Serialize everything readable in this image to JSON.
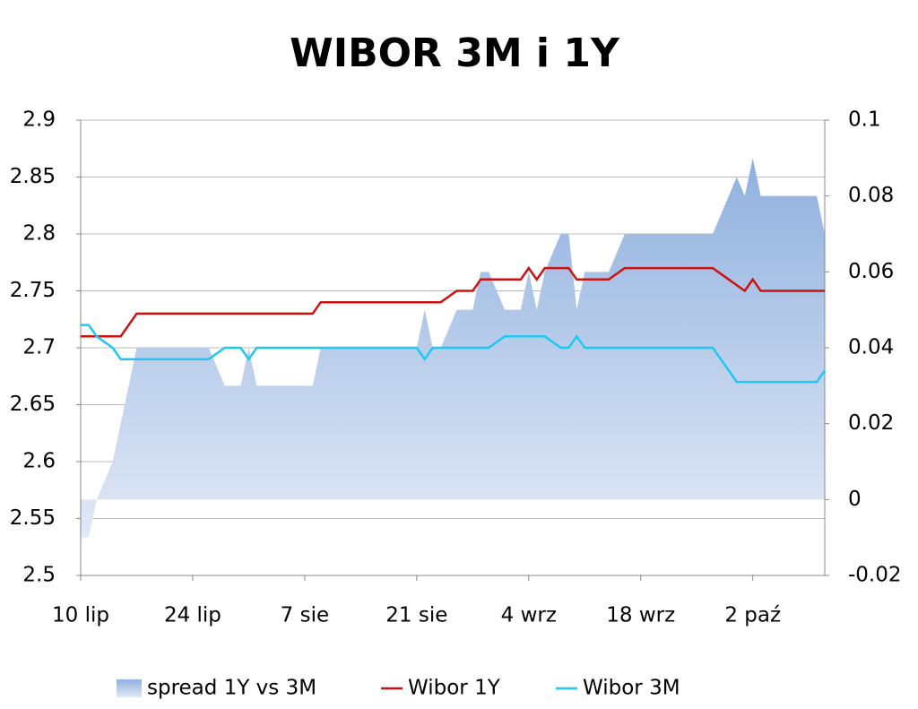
{
  "chart_data": {
    "type": "line",
    "title": "WIBOR 3M i 1Y",
    "categories": [
      "10 lip",
      null,
      null,
      null,
      null,
      null,
      null,
      null,
      null,
      null,
      null,
      null,
      null,
      null,
      "24 lip",
      null,
      null,
      null,
      null,
      null,
      null,
      null,
      null,
      null,
      null,
      null,
      null,
      null,
      "7 sie",
      null,
      null,
      null,
      null,
      null,
      null,
      null,
      null,
      null,
      null,
      null,
      null,
      null,
      "21 sie",
      null,
      null,
      null,
      null,
      null,
      null,
      null,
      null,
      null,
      null,
      null,
      null,
      null,
      "4 wrz",
      null,
      null,
      null,
      null,
      null,
      null,
      null,
      null,
      null,
      null,
      null,
      null,
      null,
      "18 wrz",
      null,
      null,
      null,
      null,
      null,
      null,
      null,
      null,
      null,
      null,
      null,
      null,
      null,
      "2 paź",
      null,
      null,
      null,
      null,
      null,
      null,
      null,
      null,
      null
    ],
    "series": [
      {
        "name": "spread 1Y vs 3M",
        "type": "area",
        "axis": "y2",
        "color": "#8fb0de",
        "values": [
          -0.01,
          -0.01,
          0,
          0.005,
          0.01,
          0.02,
          0.03,
          0.04,
          0.04,
          0.04,
          0.04,
          0.04,
          0.04,
          0.04,
          0.04,
          0.04,
          0.04,
          0.035,
          0.03,
          0.03,
          0.03,
          0.04,
          0.03,
          0.03,
          0.03,
          0.03,
          0.03,
          0.03,
          0.03,
          0.03,
          0.04,
          0.04,
          0.04,
          0.04,
          0.04,
          0.04,
          0.04,
          0.04,
          0.04,
          0.04,
          0.04,
          0.04,
          0.04,
          0.05,
          0.04,
          0.04,
          0.045,
          0.05,
          0.05,
          0.05,
          0.06,
          0.06,
          0.055,
          0.05,
          0.05,
          0.05,
          0.06,
          0.05,
          0.06,
          0.065,
          0.07,
          0.07,
          0.05,
          0.06,
          0.06,
          0.06,
          0.06,
          0.065,
          0.07,
          0.07,
          0.07,
          0.07,
          0.07,
          0.07,
          0.07,
          0.07,
          0.07,
          0.07,
          0.07,
          0.07,
          0.075,
          0.08,
          0.085,
          0.08,
          0.09,
          0.08,
          0.08,
          0.08,
          0.08,
          0.08,
          0.08,
          0.08,
          0.08,
          0.07
        ]
      },
      {
        "name": "Wibor 1Y",
        "type": "line",
        "color": "#cc1111",
        "values": [
          2.71,
          2.71,
          2.71,
          2.71,
          2.71,
          2.71,
          2.72,
          2.73,
          2.73,
          2.73,
          2.73,
          2.73,
          2.73,
          2.73,
          2.73,
          2.73,
          2.73,
          2.73,
          2.73,
          2.73,
          2.73,
          2.73,
          2.73,
          2.73,
          2.73,
          2.73,
          2.73,
          2.73,
          2.73,
          2.73,
          2.74,
          2.74,
          2.74,
          2.74,
          2.74,
          2.74,
          2.74,
          2.74,
          2.74,
          2.74,
          2.74,
          2.74,
          2.74,
          2.74,
          2.74,
          2.74,
          2.745,
          2.75,
          2.75,
          2.75,
          2.76,
          2.76,
          2.76,
          2.76,
          2.76,
          2.76,
          2.77,
          2.76,
          2.77,
          2.77,
          2.77,
          2.77,
          2.76,
          2.76,
          2.76,
          2.76,
          2.76,
          2.765,
          2.77,
          2.77,
          2.77,
          2.77,
          2.77,
          2.77,
          2.77,
          2.77,
          2.77,
          2.77,
          2.77,
          2.77,
          2.765,
          2.76,
          2.755,
          2.75,
          2.76,
          2.75,
          2.75,
          2.75,
          2.75,
          2.75,
          2.75,
          2.75,
          2.75,
          2.75
        ]
      },
      {
        "name": "Wibor 3M",
        "type": "line",
        "color": "#1ec8f0",
        "values": [
          2.72,
          2.72,
          2.71,
          2.705,
          2.7,
          2.69,
          2.69,
          2.69,
          2.69,
          2.69,
          2.69,
          2.69,
          2.69,
          2.69,
          2.69,
          2.69,
          2.69,
          2.695,
          2.7,
          2.7,
          2.7,
          2.69,
          2.7,
          2.7,
          2.7,
          2.7,
          2.7,
          2.7,
          2.7,
          2.7,
          2.7,
          2.7,
          2.7,
          2.7,
          2.7,
          2.7,
          2.7,
          2.7,
          2.7,
          2.7,
          2.7,
          2.7,
          2.7,
          2.69,
          2.7,
          2.7,
          2.7,
          2.7,
          2.7,
          2.7,
          2.7,
          2.7,
          2.705,
          2.71,
          2.71,
          2.71,
          2.71,
          2.71,
          2.71,
          2.705,
          2.7,
          2.7,
          2.71,
          2.7,
          2.7,
          2.7,
          2.7,
          2.7,
          2.7,
          2.7,
          2.7,
          2.7,
          2.7,
          2.7,
          2.7,
          2.7,
          2.7,
          2.7,
          2.7,
          2.7,
          2.69,
          2.68,
          2.67,
          2.67,
          2.67,
          2.67,
          2.67,
          2.67,
          2.67,
          2.67,
          2.67,
          2.67,
          2.67,
          2.68
        ]
      }
    ],
    "ylim": [
      2.5,
      2.9
    ],
    "yticks": [
      2.5,
      2.55,
      2.6,
      2.65,
      2.7,
      2.75,
      2.8,
      2.85,
      2.9
    ],
    "y2lim": [
      -0.02,
      0.1
    ],
    "y2ticks": [
      -0.02,
      0,
      0.02,
      0.04,
      0.06,
      0.08,
      0.1
    ],
    "grid": true,
    "legend": "bottom"
  }
}
